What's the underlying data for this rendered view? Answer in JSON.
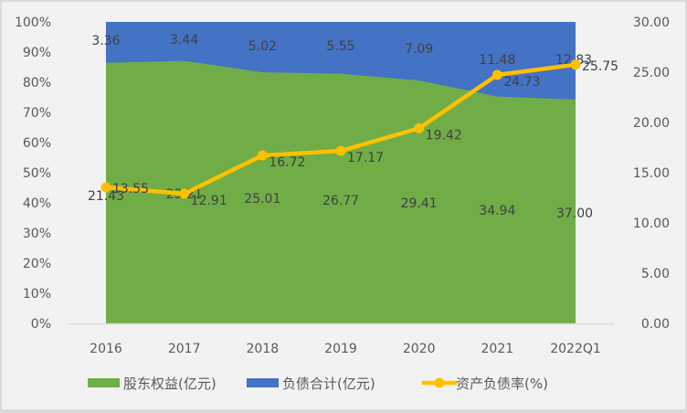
{
  "chart_data": {
    "type": "area+line",
    "categories": [
      "2016",
      "2017",
      "2018",
      "2019",
      "2020",
      "2021",
      "2022Q1"
    ],
    "series": [
      {
        "name": "股东权益(亿元)",
        "type": "stacked-100-area",
        "color": "#70ad47",
        "values": [
          21.43,
          23.21,
          25.01,
          26.77,
          29.41,
          34.94,
          37.0
        ]
      },
      {
        "name": "负债合计(亿元)",
        "type": "stacked-100-area",
        "color": "#4472c4",
        "values": [
          3.36,
          3.44,
          5.02,
          5.55,
          7.09,
          11.48,
          12.83
        ]
      },
      {
        "name": "资产负债率(%)",
        "type": "line",
        "axis": "right",
        "color": "#ffc000",
        "values": [
          13.55,
          12.91,
          16.72,
          17.17,
          19.42,
          24.73,
          25.75
        ]
      }
    ],
    "data_labels": {
      "equity": [
        "21.43",
        "23.21",
        "25.01",
        "26.77",
        "29.41",
        "34.94",
        "37.00"
      ],
      "liabilities": [
        "3.36",
        "3.44",
        "5.02",
        "5.55",
        "7.09",
        "11.48",
        "12.83"
      ],
      "ratio": [
        "13.55",
        "12.91",
        "16.72",
        "17.17",
        "19.42",
        "24.73",
        "25.75"
      ]
    },
    "left_axis": {
      "ticks": [
        "0%",
        "10%",
        "20%",
        "30%",
        "40%",
        "50%",
        "60%",
        "70%",
        "80%",
        "90%",
        "100%"
      ],
      "range": [
        0,
        100
      ]
    },
    "right_axis": {
      "ticks": [
        "0.00",
        "5.00",
        "10.00",
        "15.00",
        "20.00",
        "25.00",
        "30.00"
      ],
      "range": [
        0,
        30
      ]
    },
    "legend": {
      "position": "bottom",
      "entries": [
        "股东权益(亿元)",
        "负债合计(亿元)",
        "资产负债率(%)"
      ]
    },
    "grid": false,
    "title": ""
  }
}
